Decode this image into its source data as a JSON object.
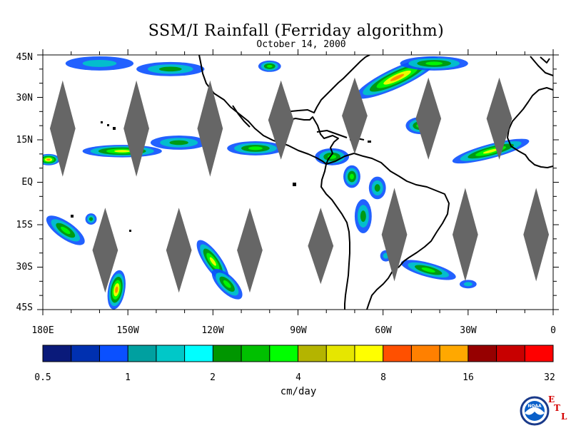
{
  "title": "SSM/I Rainfall (Ferriday algorithm)",
  "subtitle": "October 14, 2000",
  "lat_labels": [
    "45N",
    "30N",
    "15N",
    "EQ",
    "15S",
    "30S",
    "45S"
  ],
  "lon_labels": [
    "180E",
    "150W",
    "120W",
    "90W",
    "60W",
    "30W",
    "0"
  ],
  "colorbar": {
    "units": "cm/day",
    "tick_labels": [
      "0.5",
      "1",
      "2",
      "4",
      "8",
      "16",
      "32"
    ],
    "colors": [
      "#0a1a7a",
      "#0030b0",
      "#0a50ff",
      "#00a0a0",
      "#00c8c8",
      "#00ffff",
      "#009600",
      "#00c000",
      "#00ff00",
      "#b4b400",
      "#e6e600",
      "#ffff00",
      "#ff5000",
      "#ff8000",
      "#ffa800",
      "#960000",
      "#c80000",
      "#ff0000"
    ]
  },
  "map": {
    "extent": {
      "lon": [
        -180,
        0
      ],
      "lat": [
        -45,
        45
      ]
    },
    "no_data_color": "#666666",
    "missing_swaths": [
      {
        "lon": -173,
        "lat_top": 36,
        "lat_bottom": 2
      },
      {
        "lon": -147,
        "lat_top": 36,
        "lat_bottom": 2
      },
      {
        "lon": -121,
        "lat_top": 36,
        "lat_bottom": 2
      },
      {
        "lon": -96,
        "lat_top": 36,
        "lat_bottom": 8
      },
      {
        "lon": -70,
        "lat_top": 37,
        "lat_bottom": 10
      },
      {
        "lon": -44,
        "lat_top": 37,
        "lat_bottom": 8
      },
      {
        "lon": -19,
        "lat_top": 37,
        "lat_bottom": 8
      },
      {
        "lon": -158,
        "lat_top": -9,
        "lat_bottom": -39
      },
      {
        "lon": -132,
        "lat_top": -9,
        "lat_bottom": -39
      },
      {
        "lon": -107,
        "lat_top": -9,
        "lat_bottom": -39
      },
      {
        "lon": -82,
        "lat_top": -9,
        "lat_bottom": -36
      },
      {
        "lon": -56,
        "lat_top": -2,
        "lat_bottom": -35
      },
      {
        "lon": -31,
        "lat_top": -2,
        "lat_bottom": -35
      },
      {
        "lon": -6,
        "lat_top": -2,
        "lat_bottom": -35
      }
    ],
    "rain_bands": [
      {
        "lon": -152,
        "lat": 11,
        "rx_deg": 14,
        "ry_deg": 2.2,
        "rot": 0,
        "intensity": 0.7
      },
      {
        "lon": -178,
        "lat": 8,
        "rx_deg": 4,
        "ry_deg": 2,
        "rot": 0,
        "intensity": 0.8
      },
      {
        "lon": -132,
        "lat": 14,
        "rx_deg": 10,
        "ry_deg": 2.5,
        "rot": 0,
        "intensity": 0.45
      },
      {
        "lon": -105,
        "lat": 12,
        "rx_deg": 10,
        "ry_deg": 2.5,
        "rot": 0,
        "intensity": 0.55
      },
      {
        "lon": -160,
        "lat": 42,
        "rx_deg": 12,
        "ry_deg": 2.5,
        "rot": 0,
        "intensity": 0.35
      },
      {
        "lon": -135,
        "lat": 40,
        "rx_deg": 12,
        "ry_deg": 2.5,
        "rot": 0,
        "intensity": 0.4
      },
      {
        "lon": -100,
        "lat": 41,
        "rx_deg": 4,
        "ry_deg": 2,
        "rot": 0,
        "intensity": 0.5
      },
      {
        "lon": -55,
        "lat": 37,
        "rx_deg": 16,
        "ry_deg": 3.5,
        "rot": -25,
        "intensity": 0.85
      },
      {
        "lon": -42,
        "lat": 42,
        "rx_deg": 12,
        "ry_deg": 2.5,
        "rot": 0,
        "intensity": 0.6
      },
      {
        "lon": -47,
        "lat": 20,
        "rx_deg": 5,
        "ry_deg": 3,
        "rot": 0,
        "intensity": 0.6
      },
      {
        "lon": -22,
        "lat": 11,
        "rx_deg": 14,
        "ry_deg": 2.5,
        "rot": -15,
        "intensity": 0.7
      },
      {
        "lon": -78,
        "lat": 9,
        "rx_deg": 6,
        "ry_deg": 3,
        "rot": 0,
        "intensity": 0.55
      },
      {
        "lon": -71,
        "lat": 2,
        "rx_deg": 3,
        "ry_deg": 4,
        "rot": 0,
        "intensity": 0.5
      },
      {
        "lon": -67,
        "lat": -12,
        "rx_deg": 3,
        "ry_deg": 6,
        "rot": 0,
        "intensity": 0.45
      },
      {
        "lon": -62,
        "lat": -2,
        "rx_deg": 3,
        "ry_deg": 4,
        "rot": 0,
        "intensity": 0.4
      },
      {
        "lon": -44,
        "lat": -31,
        "rx_deg": 10,
        "ry_deg": 2.5,
        "rot": 15,
        "intensity": 0.6
      },
      {
        "lon": -30,
        "lat": -36,
        "rx_deg": 3,
        "ry_deg": 1.5,
        "rot": 0,
        "intensity": 0.3
      },
      {
        "lon": -120,
        "lat": -28,
        "rx_deg": 9,
        "ry_deg": 3,
        "rot": 55,
        "intensity": 0.7
      },
      {
        "lon": -115,
        "lat": -36,
        "rx_deg": 7,
        "ry_deg": 3,
        "rot": 45,
        "intensity": 0.6
      },
      {
        "lon": -154,
        "lat": -38,
        "rx_deg": 3,
        "ry_deg": 7,
        "rot": 10,
        "intensity": 0.9
      },
      {
        "lon": -172,
        "lat": -17,
        "rx_deg": 8,
        "ry_deg": 3,
        "rot": 35,
        "intensity": 0.6
      },
      {
        "lon": -163,
        "lat": -13,
        "rx_deg": 2,
        "ry_deg": 2,
        "rot": 0,
        "intensity": 0.45
      },
      {
        "lon": -59,
        "lat": -26,
        "rx_deg": 2,
        "ry_deg": 2,
        "rot": 0,
        "intensity": 0.35
      }
    ]
  },
  "logo": {
    "text": "NOAA",
    "etl_letters": [
      "E",
      "T",
      "L"
    ]
  }
}
